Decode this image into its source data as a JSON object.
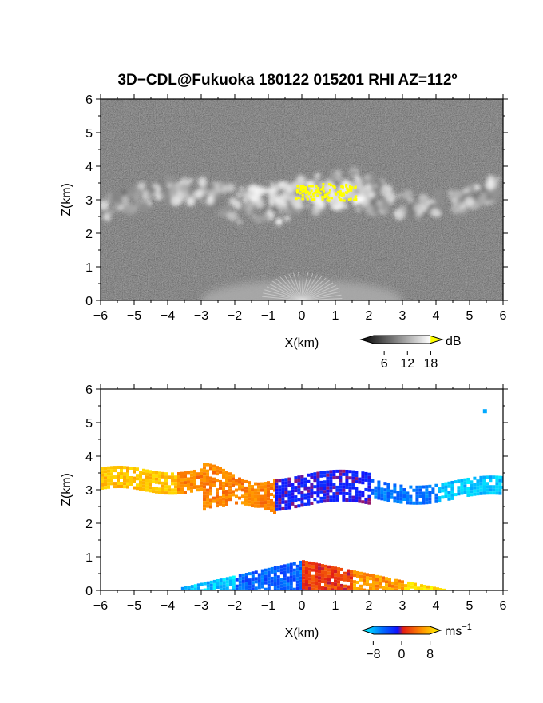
{
  "figure": {
    "title": "3D−CDL@Fukuoka 180122 015201 RHI AZ=112º"
  },
  "chart_data": [
    {
      "type": "heatmap",
      "quantity": "reflectivity",
      "xlabel": "X(km)",
      "ylabel": "Z(km)",
      "xlim": [
        -6,
        6
      ],
      "ylim": [
        0,
        6
      ],
      "xticks": [
        "−6",
        "−5",
        "−4",
        "−3",
        "−2",
        "−1",
        "0",
        "1",
        "2",
        "3",
        "4",
        "5",
        "6"
      ],
      "yticks": [
        "0",
        "1",
        "2",
        "3",
        "4",
        "5",
        "6"
      ],
      "colorbar": {
        "unit": "dB",
        "ticks": [
          "6",
          "12",
          "18"
        ],
        "tick_values": [
          6,
          12,
          18
        ],
        "range": [
          0,
          21
        ],
        "colormap": "gray-to-white, yellow above 18"
      },
      "features": [
        {
          "name": "cloud layer",
          "x_range": [
            -6,
            6
          ],
          "z_range": [
            2.2,
            3.6
          ]
        },
        {
          "name": "strong echo (>18 dB)",
          "x_range": [
            -0.2,
            1.6
          ],
          "z_range": [
            3.0,
            3.5
          ]
        },
        {
          "name": "near-ground clutter",
          "x_range": [
            -3,
            3
          ],
          "z_range": [
            0,
            0.6
          ]
        }
      ]
    },
    {
      "type": "heatmap",
      "quantity": "Doppler velocity",
      "xlabel": "X(km)",
      "ylabel": "Z(km)",
      "xlim": [
        -6,
        6
      ],
      "ylim": [
        0,
        6
      ],
      "xticks": [
        "−6",
        "−5",
        "−4",
        "−3",
        "−2",
        "−1",
        "0",
        "1",
        "2",
        "3",
        "4",
        "5",
        "6"
      ],
      "yticks": [
        "0",
        "1",
        "2",
        "3",
        "4",
        "5",
        "6"
      ],
      "colorbar": {
        "unit": "ms",
        "unit_exponent": "−1",
        "ticks": [
          "−8",
          "0",
          "8"
        ],
        "tick_values": [
          -8,
          0,
          8
        ],
        "range": [
          -11,
          11
        ],
        "colormap": "cyan-blue-red-orange-yellow"
      },
      "features": [
        {
          "name": "upper layer, west (receding)",
          "x_range": [
            -6,
            -0.8
          ],
          "z_range": [
            2.2,
            3.7
          ],
          "velocity_ms": 5
        },
        {
          "name": "upper layer, east (approaching)",
          "x_range": [
            -0.8,
            6
          ],
          "z_range": [
            2.3,
            3.6
          ],
          "velocity_ms": -6
        },
        {
          "name": "isolated echo",
          "x": 5.4,
          "z": 5.4,
          "velocity_ms": -8
        },
        {
          "name": "boundary layer, west",
          "x_range": [
            -3.6,
            0
          ],
          "z_range": [
            0,
            1.0
          ],
          "velocity_ms": -7
        },
        {
          "name": "boundary layer, east",
          "x_range": [
            0,
            4.2
          ],
          "z_range": [
            0,
            1.1
          ],
          "velocity_ms": 6
        }
      ]
    }
  ],
  "colors": {
    "background": "#ffffff",
    "noise_panel_bg": "#2a2a2a",
    "strong_echo": "#ffff00",
    "velocity_cold": "#00e0ff",
    "velocity_neg": "#0a2cff",
    "velocity_zero": "#e41d14",
    "velocity_pos": "#ff8c00",
    "velocity_hot": "#ffff00"
  }
}
